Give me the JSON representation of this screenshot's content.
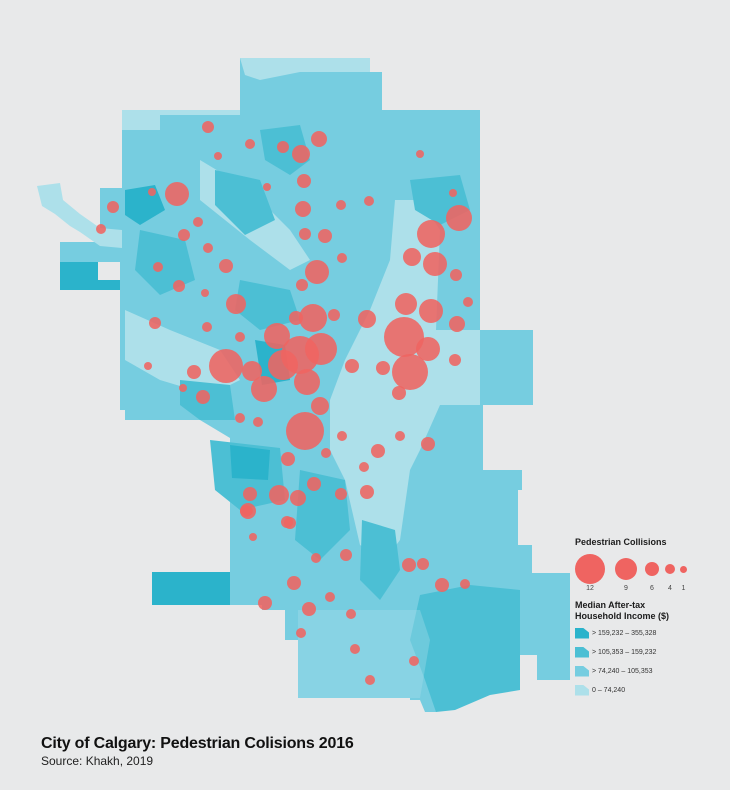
{
  "title": "City of Calgary: Pedestrian Colisions 2016",
  "source": "Source: Khakh, 2019",
  "colors": {
    "background": "#e8e9ea",
    "collision": "#ef6461",
    "income_1": "#2bb3cb",
    "income_2": "#4cbfd4",
    "income_3": "#76cde0",
    "income_4": "#ade0ea"
  },
  "legend": {
    "collisions_title": "Pedestrian Collisions",
    "collision_sizes": [
      {
        "label": "12",
        "r": 15
      },
      {
        "label": "9",
        "r": 11
      },
      {
        "label": "6",
        "r": 7
      },
      {
        "label": "4",
        "r": 5
      },
      {
        "label": "1",
        "r": 3.5
      }
    ],
    "income_title_line1": "Median After-tax",
    "income_title_line2": "Household Income ($)",
    "income_classes": [
      {
        "label": "> 159,232 – 355,328",
        "color": "#2bb3cb"
      },
      {
        "label": "> 105,353 – 159,232",
        "color": "#4cbfd4"
      },
      {
        "label": "> 74,240 – 105,353",
        "color": "#76cde0"
      },
      {
        "label": "0 – 74,240",
        "color": "#ade0ea"
      }
    ]
  },
  "chart_data": {
    "type": "proportional-symbol-choropleth",
    "title": "City of Calgary: Pedestrian Colisions 2016",
    "subtitle": "Source: Khakh, 2019",
    "symbol_legend": {
      "title": "Pedestrian Collisions",
      "values": [
        12,
        9,
        6,
        4,
        1
      ]
    },
    "choropleth_legend": {
      "title": "Median After-tax Household Income ($)",
      "classes": [
        "> 159,232 – 355,328",
        "> 105,353 – 159,232",
        "> 74,240 – 105,353",
        "0 – 74,240"
      ]
    },
    "collisions": [
      [
        208,
        127,
        6
      ],
      [
        250,
        144,
        5
      ],
      [
        283,
        147,
        6
      ],
      [
        319,
        139,
        8
      ],
      [
        301,
        154,
        9
      ],
      [
        218,
        156,
        4
      ],
      [
        420,
        154,
        4
      ],
      [
        304,
        181,
        7
      ],
      [
        267,
        187,
        4
      ],
      [
        152,
        192,
        4
      ],
      [
        177,
        194,
        12
      ],
      [
        113,
        207,
        6
      ],
      [
        341,
        205,
        5
      ],
      [
        369,
        201,
        5
      ],
      [
        453,
        193,
        4
      ],
      [
        303,
        209,
        8
      ],
      [
        198,
        222,
        5
      ],
      [
        459,
        218,
        13
      ],
      [
        101,
        229,
        5
      ],
      [
        184,
        235,
        6
      ],
      [
        305,
        234,
        6
      ],
      [
        325,
        236,
        7
      ],
      [
        431,
        234,
        14
      ],
      [
        208,
        248,
        5
      ],
      [
        342,
        258,
        5
      ],
      [
        412,
        257,
        9
      ],
      [
        435,
        264,
        12
      ],
      [
        158,
        267,
        5
      ],
      [
        226,
        266,
        7
      ],
      [
        317,
        272,
        12
      ],
      [
        456,
        275,
        6
      ],
      [
        179,
        286,
        6
      ],
      [
        302,
        285,
        6
      ],
      [
        205,
        293,
        4
      ],
      [
        236,
        304,
        10
      ],
      [
        406,
        304,
        11
      ],
      [
        431,
        311,
        12
      ],
      [
        468,
        302,
        5
      ],
      [
        155,
        323,
        6
      ],
      [
        207,
        327,
        5
      ],
      [
        296,
        318,
        7
      ],
      [
        313,
        318,
        14
      ],
      [
        334,
        315,
        6
      ],
      [
        367,
        319,
        9
      ],
      [
        457,
        324,
        8
      ],
      [
        240,
        337,
        5
      ],
      [
        277,
        336,
        13
      ],
      [
        404,
        337,
        20
      ],
      [
        428,
        349,
        12
      ],
      [
        300,
        355,
        19
      ],
      [
        321,
        349,
        16
      ],
      [
        226,
        366,
        17
      ],
      [
        252,
        371,
        10
      ],
      [
        283,
        365,
        15
      ],
      [
        307,
        382,
        13
      ],
      [
        352,
        366,
        7
      ],
      [
        383,
        368,
        7
      ],
      [
        455,
        360,
        6
      ],
      [
        410,
        372,
        18
      ],
      [
        194,
        372,
        7
      ],
      [
        148,
        366,
        4
      ],
      [
        264,
        389,
        13
      ],
      [
        183,
        388,
        4
      ],
      [
        203,
        397,
        7
      ],
      [
        399,
        393,
        7
      ],
      [
        320,
        406,
        9
      ],
      [
        240,
        418,
        5
      ],
      [
        258,
        422,
        5
      ],
      [
        305,
        431,
        19
      ],
      [
        342,
        436,
        5
      ],
      [
        400,
        436,
        5
      ],
      [
        428,
        444,
        7
      ],
      [
        378,
        451,
        7
      ],
      [
        288,
        459,
        7
      ],
      [
        326,
        453,
        5
      ],
      [
        364,
        467,
        5
      ],
      [
        250,
        494,
        7
      ],
      [
        279,
        495,
        10
      ],
      [
        298,
        498,
        8
      ],
      [
        314,
        484,
        7
      ],
      [
        341,
        494,
        6
      ],
      [
        367,
        492,
        7
      ],
      [
        287,
        522,
        6
      ],
      [
        248,
        511,
        5
      ],
      [
        247,
        511,
        5
      ],
      [
        246,
        511,
        6
      ],
      [
        253,
        537,
        4
      ],
      [
        290,
        523,
        6
      ],
      [
        346,
        555,
        6
      ],
      [
        316,
        558,
        5
      ],
      [
        409,
        565,
        7
      ],
      [
        423,
        564,
        6
      ],
      [
        442,
        585,
        7
      ],
      [
        465,
        584,
        5
      ],
      [
        294,
        583,
        7
      ],
      [
        265,
        603,
        7
      ],
      [
        309,
        609,
        7
      ],
      [
        330,
        597,
        5
      ],
      [
        351,
        614,
        5
      ],
      [
        301,
        633,
        5
      ],
      [
        355,
        649,
        5
      ],
      [
        414,
        661,
        5
      ],
      [
        370,
        680,
        5
      ],
      [
        248,
        511,
        8
      ]
    ]
  }
}
